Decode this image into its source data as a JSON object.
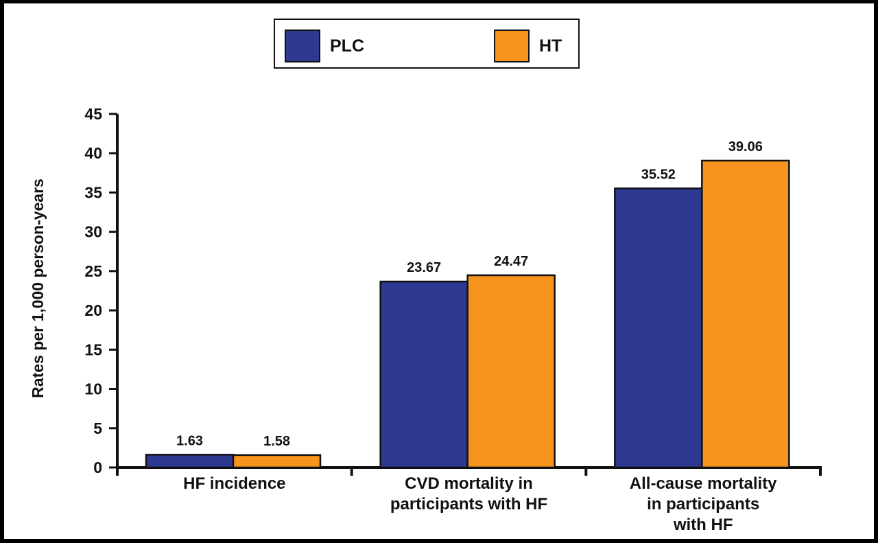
{
  "chart_data": {
    "type": "bar",
    "title": "",
    "xlabel": "",
    "ylabel": "Rates per 1,000 person-years",
    "ylim": [
      0,
      45
    ],
    "yticks": [
      0,
      5,
      10,
      15,
      20,
      25,
      30,
      35,
      40,
      45
    ],
    "grid": false,
    "legend_position": "top-center",
    "categories": [
      [
        "HF incidence"
      ],
      [
        "CVD mortality in",
        "participants with HF"
      ],
      [
        "All-cause mortality",
        "in participants",
        "with HF"
      ]
    ],
    "series": [
      {
        "name": "PLC",
        "color": "#2e3a92",
        "values": [
          1.63,
          23.67,
          35.52
        ],
        "labels": [
          "1.63",
          "23.67",
          "35.52"
        ]
      },
      {
        "name": "HT",
        "color": "#f7941d",
        "values": [
          1.58,
          24.47,
          39.06
        ],
        "labels": [
          "1.58",
          "24.47",
          "39.06"
        ]
      }
    ]
  }
}
